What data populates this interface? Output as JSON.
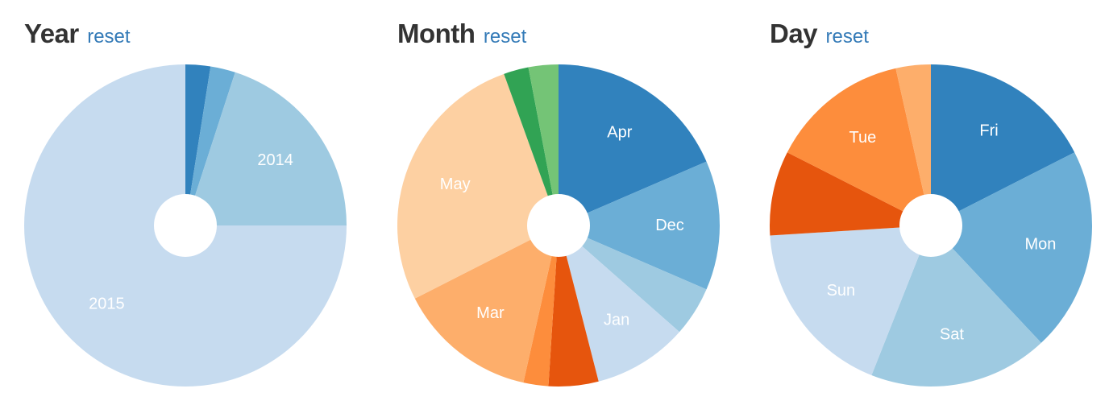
{
  "colors": {
    "title": "#333333",
    "link": "#337ab7",
    "hole": "#ffffff"
  },
  "chart_data": [
    {
      "type": "pie",
      "title": "Year",
      "reset_label": "reset",
      "slices": [
        {
          "label": "",
          "value": 2.5,
          "color": "#3182bd"
        },
        {
          "label": "",
          "value": 2.5,
          "color": "#6baed6"
        },
        {
          "label": "2014",
          "value": 20,
          "color": "#9ecae1"
        },
        {
          "label": "2015",
          "value": 75,
          "color": "#c6dbef"
        }
      ]
    },
    {
      "type": "pie",
      "title": "Month",
      "reset_label": "reset",
      "slices": [
        {
          "label": "Apr",
          "value": 18.5,
          "color": "#3182bd"
        },
        {
          "label": "Dec",
          "value": 13,
          "color": "#6baed6"
        },
        {
          "label": "",
          "value": 5,
          "color": "#9ecae1"
        },
        {
          "label": "Jan",
          "value": 9.5,
          "color": "#c6dbef"
        },
        {
          "label": "",
          "value": 5,
          "color": "#e6550d"
        },
        {
          "label": "",
          "value": 2.5,
          "color": "#fd8d3c"
        },
        {
          "label": "Mar",
          "value": 14,
          "color": "#fdae6b"
        },
        {
          "label": "May",
          "value": 27,
          "color": "#fdd0a2"
        },
        {
          "label": "",
          "value": 2.5,
          "color": "#31a354"
        },
        {
          "label": "",
          "value": 3,
          "color": "#74c476"
        }
      ]
    },
    {
      "type": "pie",
      "title": "Day",
      "reset_label": "reset",
      "slices": [
        {
          "label": "Fri",
          "value": 17.5,
          "color": "#3182bd"
        },
        {
          "label": "Mon",
          "value": 20.5,
          "color": "#6baed6"
        },
        {
          "label": "Sat",
          "value": 18,
          "color": "#9ecae1"
        },
        {
          "label": "Sun",
          "value": 18,
          "color": "#c6dbef"
        },
        {
          "label": "",
          "value": 8.5,
          "color": "#e6550d"
        },
        {
          "label": "Tue",
          "value": 14,
          "color": "#fd8d3c"
        },
        {
          "label": "",
          "value": 3.5,
          "color": "#fdae6b"
        }
      ]
    }
  ]
}
